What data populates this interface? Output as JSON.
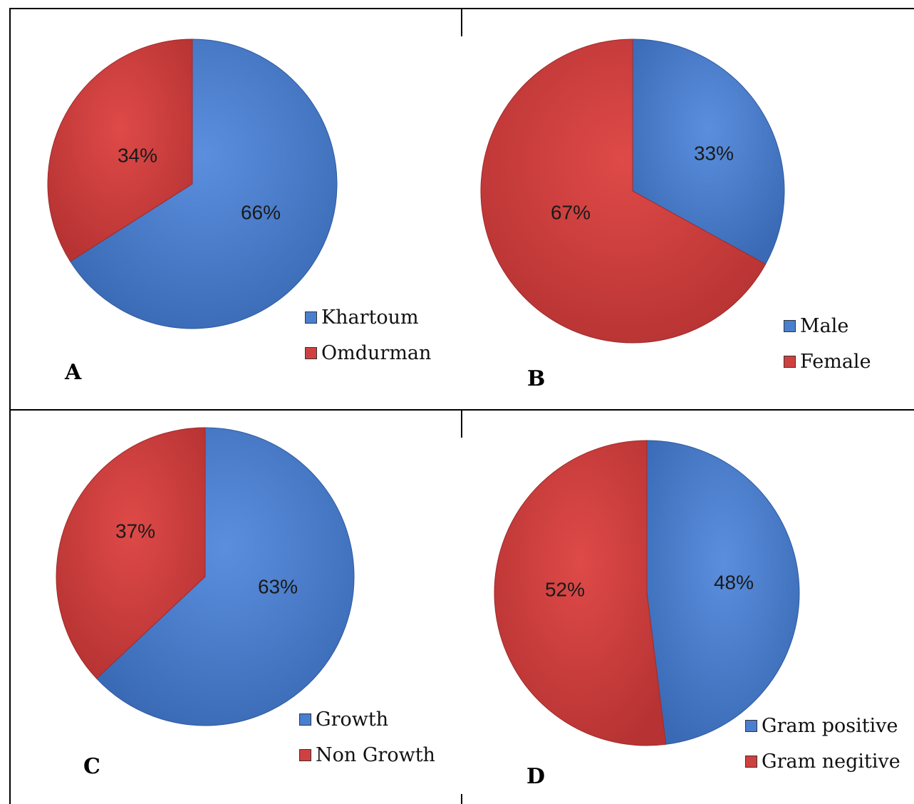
{
  "colors": {
    "blue": "#4a7fd0",
    "red": "#cf4140"
  },
  "chart_data": [
    {
      "type": "pie",
      "panel": "A",
      "slices": [
        {
          "label": "Khartoum",
          "value": 66,
          "label_text": "66%"
        },
        {
          "label": "Omdurman",
          "value": 34,
          "label_text": "34%"
        }
      ],
      "legend": [
        "Khartoum",
        "Omdurman"
      ]
    },
    {
      "type": "pie",
      "panel": "B",
      "slices": [
        {
          "label": "Male",
          "value": 33,
          "label_text": "33%"
        },
        {
          "label": "Female",
          "value": 67,
          "label_text": "67%"
        }
      ],
      "legend": [
        "Male",
        "Female"
      ]
    },
    {
      "type": "pie",
      "panel": "C",
      "slices": [
        {
          "label": "Growth",
          "value": 63,
          "label_text": "63%"
        },
        {
          "label": "Non Growth",
          "value": 37,
          "label_text": "37%"
        }
      ],
      "legend": [
        "Growth",
        "Non Growth"
      ]
    },
    {
      "type": "pie",
      "panel": "D",
      "slices": [
        {
          "label": "Gram positive",
          "value": 48,
          "label_text": "48%"
        },
        {
          "label": "Gram negitive",
          "value": 52,
          "label_text": "52%"
        }
      ],
      "legend": [
        "Gram positive",
        "Gram negitive"
      ]
    }
  ]
}
